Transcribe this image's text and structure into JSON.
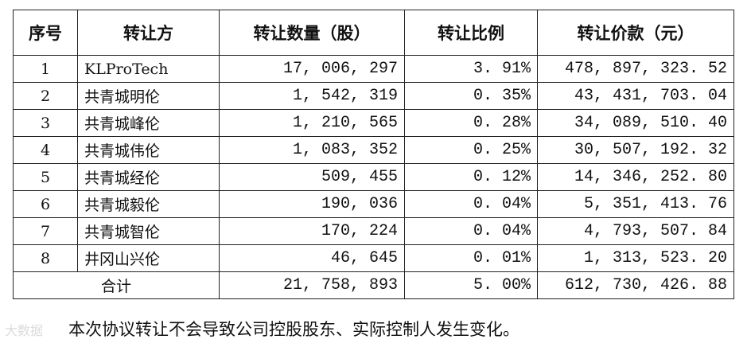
{
  "headers": [
    "序号",
    "转让方",
    "转让数量（股）",
    "转让比例",
    "转让价款（元）"
  ],
  "rows": [
    [
      "1",
      "KLProTech",
      "17, 006, 297",
      "3. 91%",
      "478, 897, 323. 52"
    ],
    [
      "2",
      "共青城明伦",
      "1, 542, 319",
      "0. 35%",
      "43, 431, 703. 04"
    ],
    [
      "3",
      "共青城峰伦",
      "1, 210, 565",
      "0. 28%",
      "34, 089, 510. 40"
    ],
    [
      "4",
      "共青城伟伦",
      "1, 083, 352",
      "0. 25%",
      "30, 507, 192. 32"
    ],
    [
      "5",
      "共青城经伦",
      "509, 455",
      "0. 12%",
      "14, 346, 252. 80"
    ],
    [
      "6",
      "共青城毅伦",
      "190, 036",
      "0. 04%",
      "5, 351, 413. 76"
    ],
    [
      "7",
      "共青城智伦",
      "170, 224",
      "0. 04%",
      "4, 793, 507. 84"
    ],
    [
      "8",
      "井冈山兴伦",
      "46, 645",
      "0. 01%",
      "1, 313, 523. 20"
    ]
  ],
  "total": {
    "label": "合计",
    "shares": "21, 758, 893",
    "ratio": "5. 00%",
    "price": "612, 730, 426. 88"
  },
  "note": "本次协议转让不会导致公司控股股东、实际控制人发生变化。",
  "watermark": "大数据"
}
